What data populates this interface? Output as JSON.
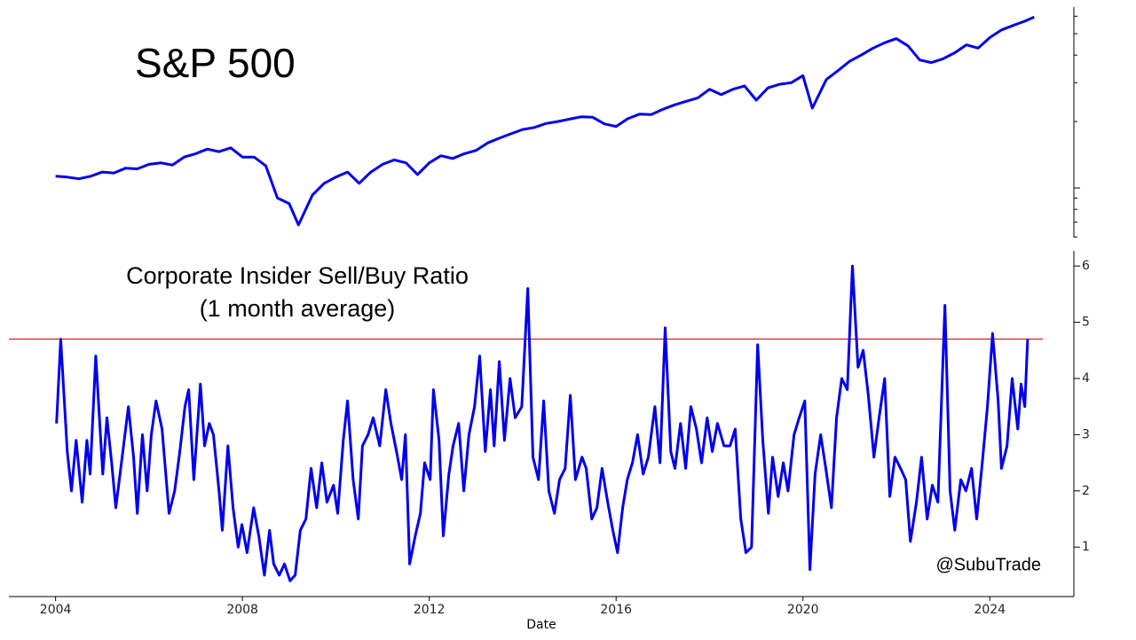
{
  "chart_data": [
    {
      "type": "line",
      "title": "S&P 500",
      "log_scale": true,
      "color": "#0000ee",
      "xlim": [
        2003.0,
        2025.8
      ],
      "ylim": [
        596,
        6600
      ],
      "yticks": [
        600,
        700,
        800,
        900,
        1000,
        2000,
        3000,
        4000,
        5000,
        6000
      ],
      "x": [
        2004.0,
        2004.25,
        2004.5,
        2004.75,
        2005.0,
        2005.25,
        2005.5,
        2005.75,
        2006.0,
        2006.25,
        2006.5,
        2006.75,
        2007.0,
        2007.25,
        2007.5,
        2007.75,
        2008.0,
        2008.25,
        2008.5,
        2008.75,
        2009.0,
        2009.2,
        2009.5,
        2009.75,
        2010.0,
        2010.25,
        2010.5,
        2010.75,
        2011.0,
        2011.25,
        2011.5,
        2011.75,
        2012.0,
        2012.25,
        2012.5,
        2012.75,
        2013.0,
        2013.25,
        2013.5,
        2013.75,
        2014.0,
        2014.25,
        2014.5,
        2014.75,
        2015.0,
        2015.25,
        2015.5,
        2015.75,
        2016.0,
        2016.25,
        2016.5,
        2016.75,
        2017.0,
        2017.25,
        2017.5,
        2017.75,
        2018.0,
        2018.25,
        2018.5,
        2018.75,
        2019.0,
        2019.25,
        2019.5,
        2019.75,
        2020.0,
        2020.2,
        2020.5,
        2020.75,
        2021.0,
        2021.25,
        2021.5,
        2021.75,
        2022.0,
        2022.25,
        2022.5,
        2022.75,
        2023.0,
        2023.25,
        2023.5,
        2023.75,
        2024.0,
        2024.25,
        2024.5,
        2024.75,
        2024.95
      ],
      "values": [
        1130,
        1120,
        1100,
        1130,
        1180,
        1170,
        1230,
        1220,
        1280,
        1300,
        1270,
        1380,
        1430,
        1500,
        1460,
        1520,
        1380,
        1380,
        1260,
        900,
        850,
        680,
        930,
        1050,
        1120,
        1180,
        1050,
        1180,
        1280,
        1340,
        1300,
        1150,
        1300,
        1400,
        1360,
        1430,
        1480,
        1600,
        1680,
        1760,
        1840,
        1880,
        1960,
        2000,
        2050,
        2100,
        2090,
        1950,
        1900,
        2060,
        2160,
        2150,
        2270,
        2380,
        2470,
        2560,
        2800,
        2650,
        2800,
        2900,
        2500,
        2840,
        2950,
        3000,
        3230,
        2300,
        3100,
        3400,
        3750,
        4000,
        4300,
        4550,
        4750,
        4400,
        3800,
        3700,
        3850,
        4100,
        4450,
        4300,
        4800,
        5200,
        5450,
        5700,
        5950
      ]
    },
    {
      "type": "line",
      "title": [
        "Corporate Insider Sell/Buy Ratio",
        "(1 month average)"
      ],
      "color": "#0000ee",
      "xlabel": "Date",
      "annotation": "@SubuTrade",
      "hline": {
        "value": 4.7,
        "color": "#cc0000"
      },
      "xlim": [
        2003.0,
        2025.8
      ],
      "ylim": [
        0.12,
        6.27
      ],
      "xticks": [
        2004,
        2008,
        2012,
        2016,
        2020,
        2024
      ],
      "yticks": [
        1,
        2,
        3,
        4,
        5,
        6
      ],
      "x": [
        2004.02,
        2004.11,
        2004.25,
        2004.34,
        2004.44,
        2004.57,
        2004.67,
        2004.74,
        2004.86,
        2005.01,
        2005.1,
        2005.2,
        2005.29,
        2005.44,
        2005.56,
        2005.67,
        2005.75,
        2005.86,
        2005.96,
        2006.05,
        2006.15,
        2006.28,
        2006.43,
        2006.55,
        2006.66,
        2006.77,
        2006.85,
        2006.96,
        2007.1,
        2007.19,
        2007.29,
        2007.38,
        2007.5,
        2007.57,
        2007.69,
        2007.8,
        2007.91,
        2007.99,
        2008.1,
        2008.24,
        2008.35,
        2008.47,
        2008.58,
        2008.67,
        2008.79,
        2008.9,
        2009.02,
        2009.13,
        2009.24,
        2009.36,
        2009.47,
        2009.59,
        2009.7,
        2009.81,
        2009.95,
        2010.04,
        2010.16,
        2010.25,
        2010.37,
        2010.48,
        2010.57,
        2010.69,
        2010.8,
        2010.94,
        2011.07,
        2011.18,
        2011.3,
        2011.41,
        2011.49,
        2011.58,
        2011.7,
        2011.81,
        2011.9,
        2012.02,
        2012.09,
        2012.21,
        2012.3,
        2012.42,
        2012.51,
        2012.63,
        2012.74,
        2012.85,
        2012.97,
        2013.08,
        2013.2,
        2013.31,
        2013.39,
        2013.5,
        2013.61,
        2013.73,
        2013.84,
        2013.98,
        2014.11,
        2014.22,
        2014.34,
        2014.45,
        2014.56,
        2014.68,
        2014.79,
        2014.91,
        2015.02,
        2015.13,
        2015.27,
        2015.36,
        2015.48,
        2015.59,
        2015.7,
        2015.82,
        2015.93,
        2016.03,
        2016.14,
        2016.24,
        2016.35,
        2016.46,
        2016.58,
        2016.69,
        2016.83,
        2016.94,
        2017.05,
        2017.17,
        2017.26,
        2017.38,
        2017.49,
        2017.6,
        2017.72,
        2017.83,
        2017.95,
        2018.06,
        2018.17,
        2018.31,
        2018.44,
        2018.55,
        2018.67,
        2018.78,
        2018.9,
        2019.03,
        2019.14,
        2019.26,
        2019.35,
        2019.47,
        2019.58,
        2019.68,
        2019.81,
        2019.92,
        2020.04,
        2020.15,
        2020.26,
        2020.38,
        2020.49,
        2020.61,
        2020.72,
        2020.83,
        2020.95,
        2021.06,
        2021.18,
        2021.29,
        2021.4,
        2021.52,
        2021.63,
        2021.75,
        2021.86,
        2021.97,
        2022.09,
        2022.2,
        2022.3,
        2022.43,
        2022.54,
        2022.66,
        2022.77,
        2022.89,
        2023.04,
        2023.15,
        2023.25,
        2023.38,
        2023.49,
        2023.61,
        2023.72,
        2023.84,
        2023.95,
        2024.06,
        2024.18,
        2024.25,
        2024.37,
        2024.48,
        2024.6,
        2024.67,
        2024.75,
        2024.81
      ],
      "values": [
        3.2,
        4.7,
        2.7,
        2.0,
        2.9,
        1.8,
        2.9,
        2.3,
        4.4,
        2.3,
        3.3,
        2.5,
        1.7,
        2.7,
        3.5,
        2.6,
        1.6,
        3.0,
        2.0,
        3.0,
        3.6,
        3.1,
        1.6,
        2.0,
        2.7,
        3.5,
        3.8,
        2.2,
        3.9,
        2.8,
        3.2,
        3.0,
        2.0,
        1.3,
        2.8,
        1.7,
        1.0,
        1.4,
        0.9,
        1.7,
        1.2,
        0.5,
        1.3,
        0.7,
        0.5,
        0.7,
        0.4,
        0.5,
        1.3,
        1.5,
        2.4,
        1.7,
        2.5,
        1.8,
        2.1,
        1.6,
        2.9,
        3.6,
        2.2,
        1.5,
        2.8,
        3.0,
        3.3,
        2.8,
        3.8,
        3.2,
        2.7,
        2.2,
        3.0,
        0.7,
        1.2,
        1.6,
        2.5,
        2.2,
        3.8,
        2.9,
        1.2,
        2.3,
        2.8,
        3.2,
        2.0,
        3.0,
        3.5,
        4.4,
        2.7,
        3.8,
        2.8,
        4.3,
        2.9,
        4.0,
        3.3,
        3.5,
        5.6,
        2.6,
        2.2,
        3.6,
        2.0,
        1.6,
        2.2,
        2.4,
        3.7,
        2.2,
        2.6,
        2.4,
        1.5,
        1.7,
        2.4,
        1.8,
        1.3,
        0.9,
        1.7,
        2.2,
        2.5,
        3.0,
        2.3,
        2.6,
        3.5,
        2.5,
        4.9,
        2.7,
        2.4,
        3.2,
        2.4,
        3.5,
        3.1,
        2.5,
        3.3,
        2.7,
        3.2,
        2.8,
        2.8,
        3.1,
        1.5,
        0.9,
        1.0,
        4.6,
        2.9,
        1.6,
        2.6,
        1.9,
        2.5,
        2.0,
        3.0,
        3.3,
        3.6,
        0.6,
        2.3,
        3.0,
        2.4,
        1.7,
        3.3,
        4.0,
        3.8,
        6.0,
        4.2,
        4.5,
        3.7,
        2.6,
        3.3,
        4.0,
        1.9,
        2.6,
        2.4,
        2.2,
        1.1,
        1.8,
        2.6,
        1.5,
        2.1,
        1.8,
        5.3,
        2.0,
        1.3,
        2.2,
        2.0,
        2.4,
        1.5,
        2.5,
        3.5,
        4.8,
        3.6,
        2.4,
        2.8,
        4.0,
        3.1,
        3.9,
        3.5,
        4.7
      ]
    }
  ]
}
